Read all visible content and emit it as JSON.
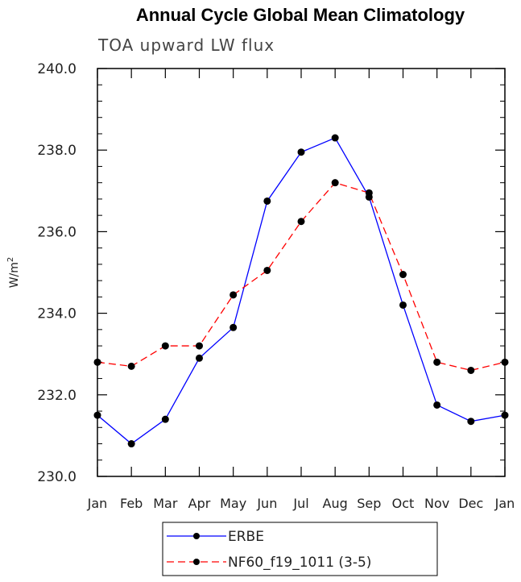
{
  "chart_data": {
    "type": "line",
    "title": "Annual Cycle Global Mean Climatology",
    "subtitle": "TOA upward LW flux",
    "ylabel": "W/m",
    "ylabel_sup": "2",
    "xlabel": "",
    "categories": [
      "Jan",
      "Feb",
      "Mar",
      "Apr",
      "May",
      "Jun",
      "Jul",
      "Aug",
      "Sep",
      "Oct",
      "Nov",
      "Dec",
      "Jan"
    ],
    "ylim": [
      230.0,
      240.0
    ],
    "yticks": [
      "230.0",
      "232.0",
      "234.0",
      "236.0",
      "238.0",
      "240.0"
    ],
    "ytick_values": [
      230,
      232,
      234,
      236,
      238,
      240
    ],
    "series": [
      {
        "name": "ERBE",
        "color": "#0000ff",
        "dash": "solid",
        "values": [
          231.5,
          230.8,
          231.4,
          232.9,
          233.65,
          236.75,
          237.95,
          238.3,
          236.85,
          234.2,
          231.75,
          231.35,
          231.5
        ]
      },
      {
        "name": "NF60_f19_1011 (3-5)",
        "color": "#ff0000",
        "dash": "dashed",
        "values": [
          232.8,
          232.7,
          233.2,
          233.2,
          234.45,
          235.05,
          236.25,
          237.2,
          236.95,
          234.95,
          232.8,
          232.6,
          232.8
        ]
      }
    ],
    "legend_placement": "bottom-center",
    "grid": false
  }
}
